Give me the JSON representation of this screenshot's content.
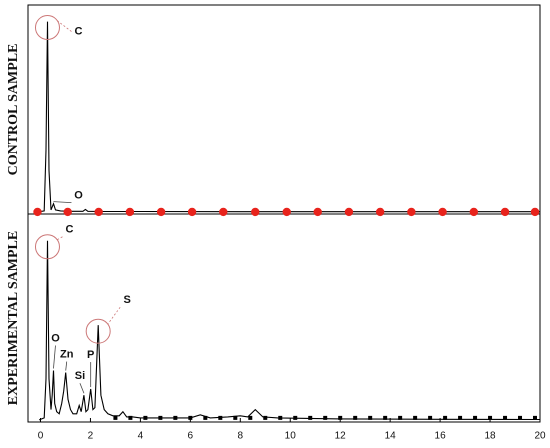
{
  "chart_data": [
    {
      "type": "line",
      "ylabel": "CONTROL SAMPLE",
      "xlim": [
        -0.5,
        20
      ],
      "ylim": [
        -1,
        100
      ],
      "series": [
        {
          "color": "#000000",
          "line": true,
          "x": [
            -0.1,
            0.15,
            0.22,
            0.28,
            0.34,
            0.42,
            0.52,
            0.6,
            0.8,
            1.2,
            1.7,
            1.8,
            1.9,
            2.5,
            4,
            8,
            12,
            16,
            20
          ],
          "values": [
            0,
            0.5,
            30,
            92,
            20,
            1,
            4,
            1,
            0.5,
            0.3,
            0.3,
            1.2,
            0.3,
            0.2,
            0.2,
            0.1,
            0.1,
            0.1,
            0.1
          ]
        },
        {
          "color": "#e8231c",
          "line": false,
          "marker": "circle",
          "x": [
            -0.12,
            1.09,
            2.33,
            3.58,
            4.83,
            6.07,
            7.32,
            8.6,
            9.86,
            11.1,
            12.35,
            13.6,
            14.85,
            16.1,
            17.35,
            18.6,
            19.8
          ],
          "values": [
            0,
            0,
            0,
            0,
            0,
            0,
            0,
            0,
            0,
            0,
            0,
            0,
            0,
            0,
            0,
            0,
            0
          ]
        }
      ],
      "annotations": [
        {
          "text": "C",
          "x": 0.28,
          "y": 92,
          "circled": true
        },
        {
          "text": "O",
          "x": 0.52,
          "y": 4,
          "circled": false
        }
      ]
    },
    {
      "type": "line",
      "ylabel": "EXPERIMENTAL SAMPLE",
      "xlim": [
        -0.5,
        20
      ],
      "ylim": [
        -1,
        100
      ],
      "xticks": [
        0,
        2,
        4,
        6,
        8,
        10,
        12,
        14,
        16,
        18,
        20
      ],
      "series": [
        {
          "color": "#000000",
          "line": true,
          "x": [
            -0.05,
            0.15,
            0.22,
            0.28,
            0.34,
            0.42,
            0.47,
            0.52,
            0.57,
            0.65,
            0.75,
            0.85,
            0.93,
            1.01,
            1.1,
            1.2,
            1.3,
            1.45,
            1.55,
            1.63,
            1.74,
            1.82,
            1.9,
            2.01,
            2.1,
            2.18,
            2.31,
            2.42,
            2.55,
            2.7,
            2.9,
            3.15,
            3.3,
            3.45,
            3.7,
            4.0,
            5.0,
            6.0,
            6.4,
            6.8,
            7.5,
            8.0,
            8.3,
            8.6,
            8.9,
            9.5,
            12,
            16,
            20
          ],
          "values": [
            0,
            1,
            20,
            87,
            20,
            5,
            12,
            24,
            8,
            4,
            3,
            8,
            14,
            23,
            10,
            5,
            3,
            3,
            7,
            4,
            12,
            4,
            5,
            15,
            5,
            6,
            46,
            12,
            5,
            3,
            2,
            2,
            4,
            1.5,
            1.5,
            1,
            1,
            1,
            2.5,
            1,
            1.5,
            2,
            1.5,
            5,
            1.5,
            1,
            0.5,
            0.3,
            0.2
          ]
        },
        {
          "color": "#000000",
          "line": false,
          "marker": "square",
          "x": [
            3.0,
            3.6,
            4.2,
            4.8,
            5.4,
            6.0,
            6.6,
            7.2,
            7.8,
            8.4,
            9.0,
            9.6,
            10.2,
            10.8,
            11.4,
            12.0,
            12.6,
            13.2,
            13.8,
            14.4,
            15.0,
            15.6,
            16.2,
            16.8,
            17.4,
            18.0,
            18.6,
            19.2,
            19.8
          ],
          "values": [
            1,
            1,
            1,
            1,
            1,
            1,
            1,
            1,
            1,
            1,
            1,
            1,
            1,
            1,
            1,
            1,
            1,
            1,
            1,
            1,
            1,
            1,
            1,
            1,
            1,
            1,
            1,
            1,
            1
          ]
        }
      ],
      "annotations": [
        {
          "text": "C",
          "x": 0.28,
          "y": 87,
          "circled": true
        },
        {
          "text": "O",
          "x": 0.52,
          "y": 24,
          "circled": false
        },
        {
          "text": "Zn",
          "x": 1.01,
          "y": 23,
          "circled": false
        },
        {
          "text": "Si",
          "x": 1.74,
          "y": 12,
          "circled": false
        },
        {
          "text": "P",
          "x": 2.01,
          "y": 15,
          "circled": false
        },
        {
          "text": "S",
          "x": 2.31,
          "y": 46,
          "circled": true
        }
      ]
    }
  ]
}
